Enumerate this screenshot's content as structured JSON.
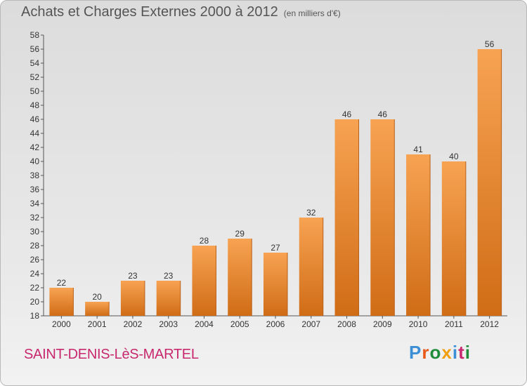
{
  "header": {
    "title": "Achats et Charges Externes 2000 à 2012",
    "subtitle": "(en milliers d'€)"
  },
  "footer": {
    "commune": "SAINT-DENIS-LèS-MARTEL",
    "brand": "Proxiti",
    "brand_letters": [
      "P",
      "r",
      "o",
      "x",
      "i",
      "t",
      "i"
    ]
  },
  "chart_data": {
    "type": "bar",
    "title": "Achats et Charges Externes 2000 à 2012",
    "subtitle": "(en milliers d'€)",
    "xlabel": "",
    "ylabel": "",
    "categories": [
      "2000",
      "2001",
      "2002",
      "2003",
      "2004",
      "2005",
      "2006",
      "2007",
      "2008",
      "2009",
      "2010",
      "2011",
      "2012"
    ],
    "values": [
      22,
      20,
      23,
      23,
      28,
      29,
      27,
      32,
      46,
      46,
      41,
      40,
      56
    ],
    "ylim": [
      18,
      58
    ],
    "yticks": [
      18,
      20,
      22,
      24,
      26,
      28,
      30,
      32,
      34,
      36,
      38,
      40,
      42,
      44,
      46,
      48,
      50,
      52,
      54,
      56,
      58
    ],
    "grid": false,
    "bar_color": "#f0903a"
  }
}
